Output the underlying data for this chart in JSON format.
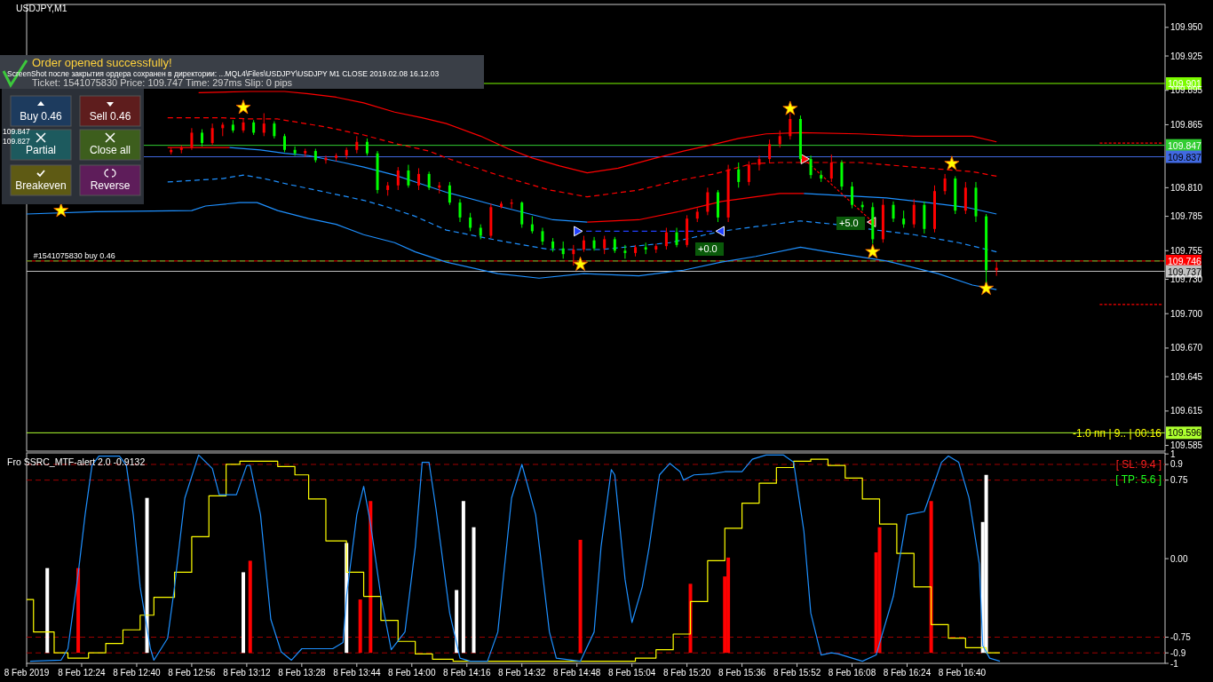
{
  "chart_data": [
    {
      "type": "candlestick",
      "title": "USDJPY,M1",
      "xlim": [
        "2019-02-08T12:08",
        "2019-02-08T17:39"
      ],
      "ylim": [
        109.58,
        109.97
      ],
      "yticks": [
        {
          "value": 109.95,
          "label": "109.950"
        },
        109.925,
        109.895,
        109.865,
        {
          "value": 109.81,
          "label": "109.810"
        },
        109.785,
        109.755,
        {
          "value": 109.73,
          "label": "109.730"
        },
        {
          "value": 109.7,
          "label": "109.700"
        },
        {
          "value": 109.67,
          "label": "109.670"
        },
        109.645,
        109.615,
        109.585
      ],
      "tick_labels": "y",
      "series": [
        {
          "type": "candlestick",
          "color": "#ff0000",
          "x": [
            "2019-02-08T12:50",
            "2019-02-08T12:53",
            "2019-02-08T12:56",
            "2019-02-08T13:02",
            "2019-02-08T13:05",
            "2019-02-08T13:11",
            "2019-02-08T13:17",
            "2019-02-08T13:29",
            "2019-02-08T13:35",
            "2019-02-08T13:38",
            "2019-02-08T13:41",
            "2019-02-08T13:44",
            "2019-02-08T13:53",
            "2019-02-08T13:56",
            "2019-02-08T14:02",
            "2019-02-08T14:08",
            "2019-02-08T14:23",
            "2019-02-08T14:26",
            "2019-02-08T14:29",
            "2019-02-08T14:47",
            "2019-02-08T14:50",
            "2019-02-08T14:56",
            "2019-02-08T15:05",
            "2019-02-08T15:11",
            "2019-02-08T15:14",
            "2019-02-08T15:20",
            "2019-02-08T15:23",
            "2019-02-08T15:26",
            "2019-02-08T15:32",
            "2019-02-08T15:38",
            "2019-02-08T15:41",
            "2019-02-08T15:44",
            "2019-02-08T15:47",
            "2019-02-08T15:50",
            "2019-02-08T16:02",
            "2019-02-08T16:17",
            "2019-02-08T16:26",
            "2019-02-08T16:32",
            "2019-02-08T16:35",
            "2019-02-08T16:41",
            "2019-02-08T16:50"
          ],
          "ohlc": [
            [
              109.841,
              109.845,
              109.839,
              109.843
            ],
            [
              109.843,
              109.847,
              109.84,
              109.845
            ],
            [
              109.845,
              109.862,
              109.843,
              109.858
            ],
            [
              109.849,
              109.866,
              109.847,
              109.862
            ],
            [
              109.862,
              109.867,
              109.855,
              109.865
            ],
            [
              109.86,
              109.87,
              109.858,
              109.867
            ],
            [
              109.858,
              109.875,
              109.855,
              109.866
            ],
            [
              109.84,
              109.844,
              109.837,
              109.842
            ],
            [
              109.834,
              109.838,
              109.831,
              109.836
            ],
            [
              109.836,
              109.84,
              109.833,
              109.838
            ],
            [
              109.838,
              109.845,
              109.835,
              109.843
            ],
            [
              109.843,
              109.855,
              109.84,
              109.85
            ],
            [
              109.808,
              109.815,
              109.803,
              109.812
            ],
            [
              109.812,
              109.828,
              109.808,
              109.825
            ],
            [
              109.812,
              109.827,
              109.808,
              109.822
            ],
            [
              109.81,
              109.815,
              109.805,
              109.812
            ],
            [
              109.768,
              109.796,
              109.766,
              109.793
            ],
            [
              109.793,
              109.798,
              109.792,
              109.796
            ],
            [
              109.796,
              109.8,
              109.792,
              109.797
            ],
            [
              109.752,
              109.76,
              109.742,
              109.756
            ],
            [
              109.756,
              109.768,
              109.754,
              109.764
            ],
            [
              109.757,
              109.768,
              109.752,
              109.765
            ],
            [
              109.753,
              109.76,
              109.75,
              109.758
            ],
            [
              109.756,
              109.761,
              109.753,
              109.759
            ],
            [
              109.759,
              109.775,
              109.756,
              109.771
            ],
            [
              109.76,
              109.786,
              109.758,
              109.783
            ],
            [
              109.783,
              109.792,
              109.78,
              109.789
            ],
            [
              109.789,
              109.81,
              109.786,
              109.806
            ],
            [
              109.784,
              109.83,
              109.78,
              109.826
            ],
            [
              109.815,
              109.833,
              109.812,
              109.83
            ],
            [
              109.83,
              109.838,
              109.825,
              109.835
            ],
            [
              109.835,
              109.852,
              109.832,
              109.848
            ],
            [
              109.848,
              109.86,
              109.845,
              109.855
            ],
            [
              109.855,
              109.875,
              109.852,
              109.87
            ],
            [
              109.818,
              109.839,
              109.815,
              109.832
            ],
            [
              109.765,
              109.8,
              109.762,
              109.795
            ],
            [
              109.778,
              109.8,
              109.775,
              109.795
            ],
            [
              109.774,
              109.812,
              109.771,
              109.807
            ],
            [
              109.807,
              109.822,
              109.804,
              109.818
            ],
            [
              109.79,
              109.815,
              109.787,
              109.81
            ],
            [
              109.738,
              109.745,
              109.733,
              109.74
            ]
          ]
        },
        {
          "type": "candlestick",
          "color": "#00ff00",
          "x": [
            "2019-02-08T12:59",
            "2019-02-08T13:08",
            "2019-02-08T13:14",
            "2019-02-08T13:20",
            "2019-02-08T13:23",
            "2019-02-08T13:26",
            "2019-02-08T13:32",
            "2019-02-08T13:47",
            "2019-02-08T13:50",
            "2019-02-08T13:59",
            "2019-02-08T14:05",
            "2019-02-08T14:11",
            "2019-02-08T14:14",
            "2019-02-08T14:17",
            "2019-02-08T14:20",
            "2019-02-08T14:32",
            "2019-02-08T14:35",
            "2019-02-08T14:38",
            "2019-02-08T14:41",
            "2019-02-08T14:44",
            "2019-02-08T14:53",
            "2019-02-08T14:59",
            "2019-02-08T15:02",
            "2019-02-08T15:08",
            "2019-02-08T15:17",
            "2019-02-08T15:29",
            "2019-02-08T15:35",
            "2019-02-08T15:53",
            "2019-02-08T15:56",
            "2019-02-08T15:59",
            "2019-02-08T16:05",
            "2019-02-08T16:08",
            "2019-02-08T16:11",
            "2019-02-08T16:14",
            "2019-02-08T16:20",
            "2019-02-08T16:23",
            "2019-02-08T16:29",
            "2019-02-08T16:38",
            "2019-02-08T16:44",
            "2019-02-08T16:47"
          ],
          "ohlc": [
            [
              109.858,
              109.861,
              109.846,
              109.849
            ],
            [
              109.865,
              109.869,
              109.858,
              109.86
            ],
            [
              109.867,
              109.869,
              109.856,
              109.858
            ],
            [
              109.866,
              109.868,
              109.853,
              109.855
            ],
            [
              109.855,
              109.857,
              109.841,
              109.843
            ],
            [
              109.843,
              109.846,
              109.838,
              109.84
            ],
            [
              109.842,
              109.844,
              109.832,
              109.834
            ],
            [
              109.85,
              109.853,
              109.838,
              109.84
            ],
            [
              109.84,
              109.842,
              109.805,
              109.808
            ],
            [
              109.825,
              109.83,
              109.81,
              109.812
            ],
            [
              109.822,
              109.824,
              109.808,
              109.81
            ],
            [
              109.812,
              109.815,
              109.795,
              109.797
            ],
            [
              109.797,
              109.8,
              109.78,
              109.784
            ],
            [
              109.784,
              109.788,
              109.772,
              109.775
            ],
            [
              109.775,
              109.778,
              109.765,
              109.768
            ],
            [
              109.797,
              109.798,
              109.775,
              109.778
            ],
            [
              109.778,
              109.785,
              109.77,
              109.772
            ],
            [
              109.772,
              109.775,
              109.76,
              109.763
            ],
            [
              109.763,
              109.766,
              109.754,
              109.757
            ],
            [
              109.757,
              109.763,
              109.748,
              109.752
            ],
            [
              109.764,
              109.767,
              109.755,
              109.757
            ],
            [
              109.765,
              109.767,
              109.753,
              109.755
            ],
            [
              109.755,
              109.76,
              109.748,
              109.753
            ],
            [
              109.758,
              109.762,
              109.752,
              109.756
            ],
            [
              109.771,
              109.775,
              109.758,
              109.76
            ],
            [
              109.806,
              109.808,
              109.78,
              109.784
            ],
            [
              109.826,
              109.832,
              109.81,
              109.815
            ],
            [
              109.87,
              109.873,
              109.832,
              109.835
            ],
            [
              109.835,
              109.838,
              109.818,
              109.821
            ],
            [
              109.821,
              109.825,
              109.815,
              109.818
            ],
            [
              109.832,
              109.834,
              109.808,
              109.811
            ],
            [
              109.811,
              109.815,
              109.792,
              109.795
            ],
            [
              109.795,
              109.798,
              109.79,
              109.793
            ],
            [
              109.793,
              109.797,
              109.761,
              109.765
            ],
            [
              109.795,
              109.798,
              109.78,
              109.783
            ],
            [
              109.783,
              109.79,
              109.775,
              109.778
            ],
            [
              109.795,
              109.798,
              109.77,
              109.774
            ],
            [
              109.818,
              109.82,
              109.787,
              109.79
            ],
            [
              109.81,
              109.815,
              109.78,
              109.785
            ],
            [
              109.785,
              109.787,
              109.727,
              109.738
            ]
          ]
        },
        {
          "type": "line",
          "color": "#ff0000",
          "x": [
            "2019-02-08T12:58",
            "2019-02-08T13:13",
            "2019-02-08T13:23",
            "2019-02-08T13:30",
            "2019-02-08T13:38",
            "2019-02-08T13:46",
            "2019-02-08T13:55",
            "2019-02-08T14:03",
            "2019-02-08T14:10",
            "2019-02-08T14:20",
            "2019-02-08T14:28",
            "2019-02-08T14:35",
            "2019-02-08T14:43",
            "2019-02-08T14:51",
            "2019-02-08T15:00",
            "2019-02-08T15:11",
            "2019-02-08T15:19",
            "2019-02-08T15:28",
            "2019-02-08T15:35",
            "2019-02-08T15:43",
            "2019-02-08T15:53",
            "2019-02-08T16:10",
            "2019-02-08T16:26",
            "2019-02-08T16:43",
            "2019-02-08T16:50"
          ],
          "values": [
            109.893,
            109.894,
            109.894,
            109.892,
            109.889,
            109.884,
            109.876,
            109.871,
            109.866,
            109.855,
            109.844,
            109.836,
            109.829,
            109.823,
            109.827,
            109.836,
            109.842,
            109.848,
            109.853,
            109.857,
            109.858,
            109.857,
            109.855,
            109.855,
            109.85
          ]
        },
        {
          "type": "line",
          "color": "#ff0000",
          "line_style": "dashed",
          "x": [
            "2019-02-08T12:49",
            "2019-02-08T13:05",
            "2019-02-08T13:13",
            "2019-02-08T13:21",
            "2019-02-08T13:27",
            "2019-02-08T13:35",
            "2019-02-08T13:46",
            "2019-02-08T13:56",
            "2019-02-08T14:05",
            "2019-02-08T14:10",
            "2019-02-08T14:25",
            "2019-02-08T14:40",
            "2019-02-08T14:51",
            "2019-02-08T15:06",
            "2019-02-08T15:17",
            "2019-02-08T15:28",
            "2019-02-08T15:39",
            "2019-02-08T15:47",
            "2019-02-08T16:10",
            "2019-02-08T16:26",
            "2019-02-08T16:43",
            "2019-02-08T16:50"
          ],
          "values": [
            109.871,
            109.871,
            109.87,
            109.87,
            109.867,
            109.863,
            109.856,
            109.848,
            109.842,
            109.836,
            109.821,
            109.808,
            109.802,
            109.808,
            109.816,
            109.822,
            109.831,
            109.832,
            109.832,
            109.828,
            109.824,
            109.82
          ]
        },
        {
          "type": "line",
          "color": "#ff0000",
          "x": [
            "2019-02-08T12:49",
            "2019-02-08T12:58",
            "2019-02-08T13:07",
            "2019-02-08T14:00",
            "2019-02-08T14:51",
            "2019-02-08T15:06",
            "2019-02-08T15:19",
            "2019-02-08T15:30",
            "2019-02-08T15:47",
            "2019-02-08T15:54"
          ],
          "values": [
            109.845,
            109.845,
            109.845,
            null,
            109.78,
            109.782,
            109.79,
            109.798,
            109.805,
            109.805
          ]
        },
        {
          "type": "line",
          "color": "#1e90ff",
          "x": [
            "2019-02-08T13:07",
            "2019-02-08T13:16",
            "2019-02-08T13:23",
            "2019-02-08T13:30",
            "2019-02-08T13:40",
            "2019-02-08T13:46",
            "2019-02-08T13:55",
            "2019-02-08T14:03",
            "2019-02-08T14:10",
            "2019-02-08T14:25",
            "2019-02-08T14:41",
            "2019-02-08T14:51",
            "2019-02-08T15:20",
            "2019-02-08T15:54",
            "2019-02-08T16:18",
            "2019-02-08T16:30",
            "2019-02-08T16:41",
            "2019-02-08T16:50"
          ],
          "values": [
            109.845,
            109.843,
            109.84,
            109.838,
            109.832,
            109.828,
            109.821,
            109.813,
            109.806,
            109.794,
            109.782,
            109.78,
            null,
            109.805,
            109.801,
            109.797,
            109.793,
            109.787
          ]
        },
        {
          "type": "line",
          "color": "#1e90ff",
          "line_style": "dashed",
          "x": [
            "2019-02-08T12:49",
            "2019-02-08T13:05",
            "2019-02-08T13:11",
            "2019-02-08T13:17",
            "2019-02-08T13:24",
            "2019-02-08T13:32",
            "2019-02-08T13:46",
            "2019-02-08T13:53",
            "2019-02-08T14:01",
            "2019-02-08T14:10",
            "2019-02-08T14:25",
            "2019-02-08T14:40",
            "2019-02-08T14:55",
            "2019-02-08T15:15",
            "2019-02-08T15:21",
            "2019-02-08T15:30",
            "2019-02-08T15:40",
            "2019-02-08T15:53",
            "2019-02-08T16:03",
            "2019-02-08T16:15",
            "2019-02-08T16:26",
            "2019-02-08T16:39",
            "2019-02-08T16:50"
          ],
          "values": [
            109.815,
            109.818,
            109.821,
            109.818,
            109.813,
            109.808,
            109.799,
            109.793,
            109.785,
            109.773,
            109.764,
            109.756,
            109.756,
            109.762,
            109.766,
            109.772,
            109.776,
            109.781,
            109.778,
            109.773,
            109.769,
            109.762,
            109.754
          ]
        },
        {
          "type": "line",
          "color": "#1e90ff",
          "x": [
            "2019-02-08T12:08",
            "2019-02-08T12:28",
            "2019-02-08T12:56",
            "2019-02-08T13:00",
            "2019-02-08T13:10",
            "2019-02-08T13:15",
            "2019-02-08T13:21",
            "2019-02-08T13:30",
            "2019-02-08T13:38",
            "2019-02-08T13:46",
            "2019-02-08T13:55",
            "2019-02-08T14:01",
            "2019-02-08T14:10",
            "2019-02-08T14:25",
            "2019-02-08T14:37",
            "2019-02-08T14:50",
            "2019-02-08T15:06",
            "2019-02-08T15:19",
            "2019-02-08T15:30",
            "2019-02-08T15:40",
            "2019-02-08T15:53",
            "2019-02-08T16:01",
            "2019-02-08T16:18",
            "2019-02-08T16:33",
            "2019-02-08T16:43",
            "2019-02-08T16:50"
          ],
          "values": [
            109.787,
            109.789,
            109.79,
            109.794,
            109.797,
            109.797,
            109.79,
            109.783,
            109.778,
            109.769,
            109.762,
            109.754,
            109.745,
            109.735,
            109.731,
            109.735,
            109.733,
            109.738,
            109.745,
            109.75,
            109.758,
            109.754,
            109.746,
            109.735,
            109.725,
            109.721
          ]
        },
        {
          "type": "line",
          "color": "#2040ff",
          "line_style": "dashed",
          "marker": "triangle",
          "x": [
            "2019-02-08T14:48",
            "2019-02-08T15:30"
          ],
          "values": [
            109.772,
            109.772
          ]
        },
        {
          "type": "line",
          "color": "#ff0000",
          "line_style": "dotted",
          "marker": "triangle",
          "x": [
            "2019-02-08T15:54",
            "2019-02-08T16:14"
          ],
          "values": [
            109.835,
            109.78
          ]
        },
        {
          "type": "line",
          "color": "#ff0000",
          "line_style": "dotted",
          "x": [
            "2019-02-08T17:20",
            "2019-02-08T17:38"
          ],
          "values": [
            109.849,
            109.849
          ]
        },
        {
          "type": "line",
          "color": "#ff0000",
          "line_style": "dotted",
          "x": [
            "2019-02-08T17:20",
            "2019-02-08T17:38"
          ],
          "values": [
            109.708,
            109.708
          ]
        },
        {
          "type": "scatter",
          "color": "#ffff00",
          "marker": "star",
          "x": [
            "2019-02-08T12:18",
            "2019-02-08T13:11",
            "2019-02-08T14:49",
            "2019-02-08T15:50",
            "2019-02-08T16:14",
            "2019-02-08T16:37",
            "2019-02-08T16:47"
          ],
          "values": [
            109.79,
            109.88,
            109.743,
            109.879,
            109.754,
            109.831,
            109.722
          ]
        }
      ],
      "ref_lines": [
        {
          "axis": "y",
          "value": 109.901,
          "label": "109.901",
          "color": "#7cfc00"
        },
        {
          "axis": "y",
          "value": 109.847,
          "label": "109.847",
          "color": "#32cd32"
        },
        {
          "axis": "y",
          "value": 109.837,
          "label": "109.837",
          "color": "#4169e1"
        },
        {
          "axis": "y",
          "value": 109.746,
          "label": "109.746",
          "color": "#ff0000"
        },
        {
          "axis": "y",
          "value": 109.746,
          "color": "#32cd32",
          "line_style": "dashed"
        },
        {
          "axis": "y",
          "value": 109.737,
          "label": "109.737",
          "color": "#c0c0c0"
        },
        {
          "axis": "y",
          "value": 109.596,
          "label": "109.596",
          "color": "#adff2f"
        }
      ],
      "annotations": [
        "Order opened successfully!",
        "ScreenShot после закрытия ордера сохранен в директории: ...MQL4\\Files\\USDJPY\\USDJPY M1 CLOSE 2019.02.08 16.12.03",
        "Ticket: 1541075830  Price: 109.747  Time: 297ms  Slip: 0 pips",
        "Buy 0.46",
        "Sell 0.46",
        "Partial",
        "Close all",
        "Breakeven",
        "Reverse",
        "109.847",
        "109.827",
        "-1.0 пп | 9.. | 00:16",
        {
          "text": "#1541075830 buy 0.46",
          "x": "2019-02-08T12:10",
          "y": 109.746
        },
        "+0.0",
        "+5.0"
      ]
    },
    {
      "type": "line",
      "title": "Fro SSRC_MTF-alert 2.0 -0.9132",
      "xlim": [
        "2019-02-08T12:08",
        "2019-02-08T17:39"
      ],
      "ylim": [
        -1.0,
        1.01
      ],
      "yticks": [
        1,
        0.9,
        0.75,
        {
          "value": 0,
          "label": "0.00"
        },
        -0.75,
        -0.9,
        -1
      ],
      "xticks": [
        {
          "value": "2019-02-08T12:08",
          "label": "8 Feb 2019"
        },
        {
          "value": "2019-02-08T12:24",
          "label": "8 Feb 12:24"
        },
        {
          "value": "2019-02-08T12:40",
          "label": "8 Feb 12:40"
        },
        {
          "value": "2019-02-08T12:56",
          "label": "8 Feb 12:56"
        },
        {
          "value": "2019-02-08T13:12",
          "label": "8 Feb 13:12"
        },
        {
          "value": "2019-02-08T13:28",
          "label": "8 Feb 13:28"
        },
        {
          "value": "2019-02-08T13:44",
          "label": "8 Feb 13:44"
        },
        {
          "value": "2019-02-08T14:00",
          "label": "8 Feb 14:00"
        },
        {
          "value": "2019-02-08T14:16",
          "label": "8 Feb 14:16"
        },
        {
          "value": "2019-02-08T14:32",
          "label": "8 Feb 14:32"
        },
        {
          "value": "2019-02-08T14:48",
          "label": "8 Feb 14:48"
        },
        {
          "value": "2019-02-08T15:04",
          "label": "8 Feb 15:04"
        },
        {
          "value": "2019-02-08T15:20",
          "label": "8 Feb 15:20"
        },
        {
          "value": "2019-02-08T15:36",
          "label": "8 Feb 15:36"
        },
        {
          "value": "2019-02-08T15:52",
          "label": "8 Feb 15:52"
        },
        {
          "value": "2019-02-08T16:08",
          "label": "8 Feb 16:08"
        },
        {
          "value": "2019-02-08T16:24",
          "label": "8 Feb 16:24"
        },
        {
          "value": "2019-02-08T16:40",
          "label": "8 Feb 16:40"
        }
      ],
      "series": [
        {
          "type": "bar",
          "color": "#ffffff",
          "x": [
            "2019-02-08T12:14",
            "2019-02-08T12:43",
            "2019-02-08T13:11",
            "2019-02-08T13:41",
            "2019-02-08T14:13",
            "2019-02-08T14:15",
            "2019-02-08T14:18",
            "2019-02-08T16:46",
            "2019-02-08T16:47"
          ],
          "base": [
            -0.9,
            -0.9,
            -0.9,
            -0.9,
            -0.9,
            -0.9,
            -0.9,
            -0.9,
            -0.9
          ],
          "values": [
            0.81,
            1.48,
            0.77,
            1.05,
            0.6,
            1.45,
            1.2,
            1.25,
            1.7
          ]
        },
        {
          "type": "bar",
          "color": "#ff0000",
          "x": [
            "2019-02-08T12:23",
            "2019-02-08T13:13",
            "2019-02-08T13:45",
            "2019-02-08T13:48",
            "2019-02-08T14:49",
            "2019-02-08T15:21",
            "2019-02-08T15:31",
            "2019-02-08T15:32",
            "2019-02-08T16:15",
            "2019-02-08T16:16",
            "2019-02-08T16:31"
          ],
          "base": [
            -0.9,
            -0.9,
            -0.9,
            -0.9,
            -0.9,
            -0.9,
            -0.9,
            -0.9,
            -0.9,
            -0.9,
            -0.9
          ],
          "values": [
            0.81,
            0.88,
            0.51,
            1.45,
            1.08,
            0.66,
            0.73,
            0.91,
            0.96,
            1.2,
            1.45
          ]
        },
        {
          "type": "step",
          "color": "#ffff00",
          "x": [
            "2019-02-08T12:08",
            "2019-02-08T12:10",
            "2019-02-08T12:16",
            "2019-02-08T12:20",
            "2019-02-08T12:26",
            "2019-02-08T12:31",
            "2019-02-08T12:36",
            "2019-02-08T12:41",
            "2019-02-08T12:45",
            "2019-02-08T12:51",
            "2019-02-08T12:56",
            "2019-02-08T13:01",
            "2019-02-08T13:06",
            "2019-02-08T13:10",
            "2019-02-08T13:21",
            "2019-02-08T13:26",
            "2019-02-08T13:30",
            "2019-02-08T13:35",
            "2019-02-08T13:41",
            "2019-02-08T13:46",
            "2019-02-08T13:51",
            "2019-02-08T13:56",
            "2019-02-08T14:01",
            "2019-02-08T14:06",
            "2019-02-08T14:12",
            "2019-02-08T15:05",
            "2019-02-08T15:11",
            "2019-02-08T15:16",
            "2019-02-08T15:21",
            "2019-02-08T15:26",
            "2019-02-08T15:31",
            "2019-02-08T15:36",
            "2019-02-08T15:41",
            "2019-02-08T15:46",
            "2019-02-08T15:51",
            "2019-02-08T15:56",
            "2019-02-08T16:01",
            "2019-02-08T16:06",
            "2019-02-08T16:11",
            "2019-02-08T16:16",
            "2019-02-08T16:21",
            "2019-02-08T16:26",
            "2019-02-08T16:31",
            "2019-02-08T16:36",
            "2019-02-08T16:41",
            "2019-02-08T16:47",
            "2019-02-08T16:51"
          ],
          "values": [
            -0.39,
            -0.7,
            -0.9,
            -0.95,
            -0.9,
            -0.81,
            -0.68,
            -0.54,
            -0.37,
            -0.13,
            0.21,
            0.6,
            0.9,
            0.93,
            0.88,
            0.8,
            0.57,
            0.17,
            -0.13,
            -0.36,
            -0.59,
            -0.79,
            -0.91,
            -0.96,
            -0.98,
            -0.95,
            -0.87,
            -0.72,
            -0.41,
            -0.02,
            0.29,
            0.53,
            0.72,
            0.87,
            0.93,
            0.95,
            0.89,
            0.77,
            0.57,
            0.33,
            0.05,
            -0.27,
            -0.63,
            -0.76,
            -0.85,
            -0.9,
            -0.9
          ]
        },
        {
          "type": "line",
          "color": "#1e90ff",
          "x": [
            "2019-02-08T12:09",
            "2019-02-08T12:18",
            "2019-02-08T12:20",
            "2019-02-08T12:23",
            "2019-02-08T12:25",
            "2019-02-08T12:27",
            "2019-02-08T12:29",
            "2019-02-08T12:35",
            "2019-02-08T12:37",
            "2019-02-08T12:39",
            "2019-02-08T12:41",
            "2019-02-08T12:44",
            "2019-02-08T12:45",
            "2019-02-08T12:49",
            "2019-02-08T12:51",
            "2019-02-08T12:54",
            "2019-02-08T12:58",
            "2019-02-08T13:02",
            "2019-02-08T13:04",
            "2019-02-08T13:09",
            "2019-02-08T13:12",
            "2019-02-08T13:13",
            "2019-02-08T13:16",
            "2019-02-08T13:19",
            "2019-02-08T13:22",
            "2019-02-08T13:25",
            "2019-02-08T13:28",
            "2019-02-08T13:37",
            "2019-02-08T13:40",
            "2019-02-08T13:41",
            "2019-02-08T13:44",
            "2019-02-08T13:46",
            "2019-02-08T13:48",
            "2019-02-08T13:51",
            "2019-02-08T13:54",
            "2019-02-08T13:58",
            "2019-02-08T14:01",
            "2019-02-08T14:03",
            "2019-02-08T14:05",
            "2019-02-08T14:07",
            "2019-02-08T14:11",
            "2019-02-08T14:14",
            "2019-02-08T14:17",
            "2019-02-08T14:22",
            "2019-02-08T14:25",
            "2019-02-08T14:29",
            "2019-02-08T14:32",
            "2019-02-08T14:36",
            "2019-02-08T14:40",
            "2019-02-08T14:42",
            "2019-02-08T14:49",
            "2019-02-08T14:53",
            "2019-02-08T14:55",
            "2019-02-08T14:58",
            "2019-02-08T14:59",
            "2019-02-08T15:02",
            "2019-02-08T15:04",
            "2019-02-08T15:07",
            "2019-02-08T15:09",
            "2019-02-08T15:12",
            "2019-02-08T15:15",
            "2019-02-08T15:18",
            "2019-02-08T15:19",
            "2019-02-08T15:22",
            "2019-02-08T15:27",
            "2019-02-08T15:31",
            "2019-02-08T15:36",
            "2019-02-08T15:39",
            "2019-02-08T15:43",
            "2019-02-08T15:48",
            "2019-02-08T15:51",
            "2019-02-08T15:54",
            "2019-02-08T15:56",
            "2019-02-08T15:59",
            "2019-02-08T16:02",
            "2019-02-08T16:04",
            "2019-02-08T16:11",
            "2019-02-08T16:15",
            "2019-02-08T16:20",
            "2019-02-08T16:24",
            "2019-02-08T16:29",
            "2019-02-08T16:32",
            "2019-02-08T16:34",
            "2019-02-08T16:36",
            "2019-02-08T16:39",
            "2019-02-08T16:42",
            "2019-02-08T16:45",
            "2019-02-08T16:46",
            "2019-02-08T16:48",
            "2019-02-08T16:51"
          ],
          "values": [
            -0.98,
            -0.97,
            -0.86,
            -0.14,
            0.42,
            0.89,
            0.98,
            0.98,
            0.89,
            0.42,
            -0.27,
            -0.86,
            -0.97,
            -0.76,
            -0.27,
            0.58,
            0.99,
            0.86,
            0.61,
            0.61,
            0.89,
            0.89,
            0.42,
            -0.58,
            -0.89,
            -0.97,
            -0.86,
            -0.86,
            -0.8,
            -0.36,
            0.42,
            0.69,
            0.33,
            -0.36,
            -0.87,
            -0.7,
            0.11,
            0.92,
            0.92,
            0.48,
            -0.52,
            -0.95,
            -0.98,
            -0.98,
            -0.7,
            0.58,
            0.9,
            0.42,
            -0.7,
            -0.95,
            -0.98,
            -0.7,
            0.11,
            0.85,
            0.8,
            -0.2,
            -0.61,
            -0.27,
            0.11,
            0.8,
            0.91,
            0.83,
            0.75,
            0.8,
            0.81,
            0.83,
            0.83,
            0.95,
            0.99,
            0.99,
            0.92,
            0.26,
            -0.52,
            -0.92,
            -0.9,
            -0.91,
            -0.98,
            -0.92,
            -0.36,
            0.42,
            0.45,
            0.73,
            0.92,
            0.98,
            0.92,
            0.58,
            -0.05,
            -0.83,
            -0.95,
            -0.98
          ]
        }
      ],
      "ref_lines": [
        {
          "axis": "y",
          "value": 0.9,
          "color": "#a00000",
          "line_style": "dashed"
        },
        {
          "axis": "y",
          "value": 0.75,
          "color": "#a00000",
          "line_style": "dashed"
        },
        {
          "axis": "y",
          "value": -0.75,
          "color": "#a00000",
          "line_style": "dashed"
        },
        {
          "axis": "y",
          "value": -0.9,
          "color": "#a00000",
          "line_style": "dashed"
        }
      ],
      "annotations": [
        "[ SL: 9.4 ]",
        "[ TP: 5.6 ]"
      ]
    }
  ]
}
